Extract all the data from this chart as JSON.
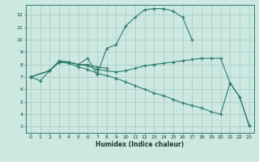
{
  "xlabel": "Humidex (Indice chaleur)",
  "background_color": "#cce8e0",
  "grid_color": "#aad0c8",
  "line_color": "#2e7d6e",
  "xlim": [
    -0.5,
    23.5
  ],
  "ylim": [
    2.5,
    12.8
  ],
  "yticks": [
    3,
    4,
    5,
    6,
    7,
    8,
    9,
    10,
    11,
    12
  ],
  "xticks": [
    0,
    1,
    2,
    3,
    4,
    5,
    6,
    7,
    8,
    9,
    10,
    11,
    12,
    13,
    14,
    15,
    16,
    17,
    18,
    19,
    20,
    21,
    22,
    23
  ],
  "line1_x": [
    0,
    1,
    2,
    3,
    4,
    5,
    6,
    7,
    8,
    9,
    10,
    11,
    12,
    13,
    14,
    15,
    16,
    17
  ],
  "line1_y": [
    7.0,
    6.7,
    7.5,
    8.2,
    8.2,
    8.0,
    8.5,
    7.2,
    9.3,
    9.6,
    11.1,
    11.8,
    12.4,
    12.5,
    12.5,
    12.3,
    11.8,
    10.0
  ],
  "line2_x": [
    0,
    2,
    3,
    4,
    5,
    6,
    7,
    8
  ],
  "line2_y": [
    7.0,
    7.5,
    8.3,
    8.2,
    8.0,
    8.0,
    7.8,
    7.7
  ],
  "line3_x": [
    0,
    2,
    3,
    4,
    5,
    6,
    7,
    8,
    9,
    10,
    11,
    12,
    13,
    14,
    15,
    16,
    17,
    18,
    19,
    20,
    21,
    22,
    23
  ],
  "line3_y": [
    7.0,
    7.5,
    8.2,
    8.2,
    8.0,
    7.9,
    7.6,
    7.5,
    7.4,
    7.5,
    7.7,
    7.9,
    8.0,
    8.1,
    8.2,
    8.3,
    8.4,
    8.5,
    8.5,
    8.5,
    6.5,
    5.4,
    3.1
  ],
  "line4_x": [
    0,
    2,
    3,
    4,
    5,
    6,
    7,
    8,
    9,
    10,
    11,
    12,
    13,
    14,
    15,
    16,
    17,
    18,
    19,
    20,
    21,
    22,
    23
  ],
  "line4_y": [
    7.0,
    7.5,
    8.2,
    8.1,
    7.8,
    7.6,
    7.3,
    7.1,
    6.9,
    6.6,
    6.3,
    6.0,
    5.7,
    5.5,
    5.2,
    4.9,
    4.7,
    4.5,
    4.2,
    4.0,
    6.5,
    5.4,
    3.1
  ]
}
